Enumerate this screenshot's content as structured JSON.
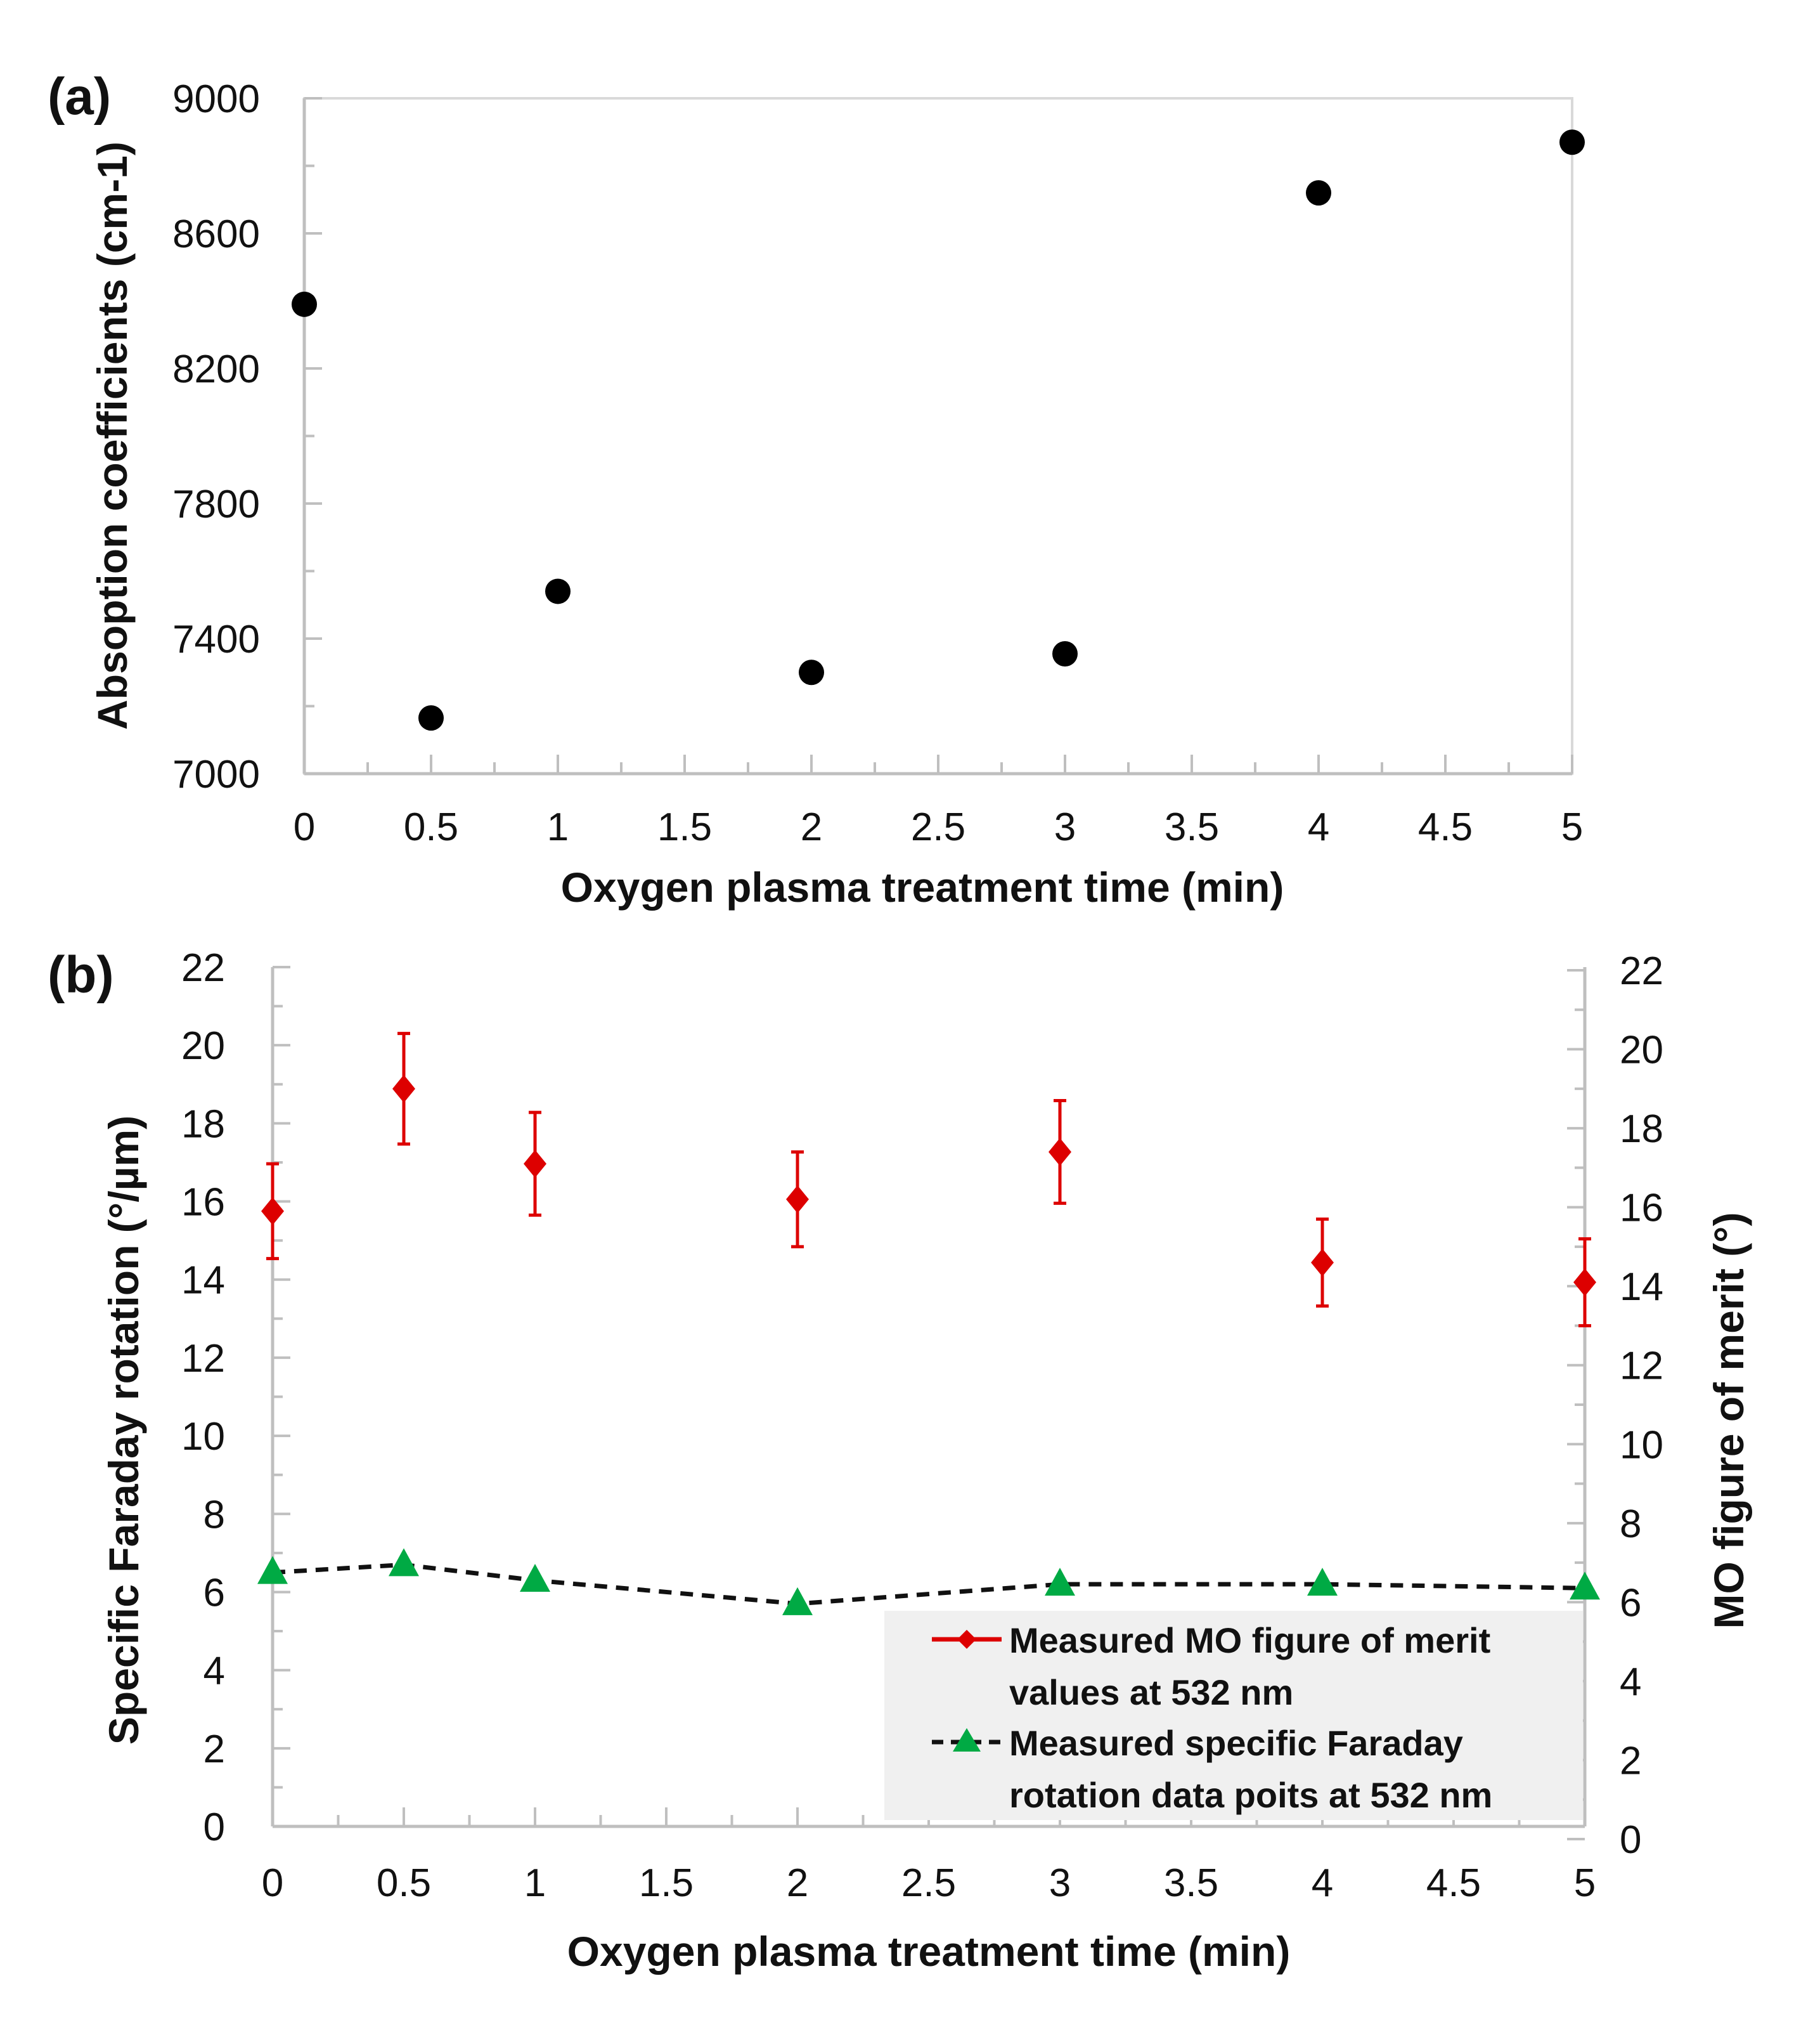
{
  "chart_data": [
    {
      "panel": "(a)",
      "type": "scatter",
      "xlabel": "Oxygen plasma treatment time (min)",
      "ylabel": "Absoption coefficients (cm-1)",
      "xlim": [
        0,
        5
      ],
      "ylim": [
        7000,
        9000
      ],
      "xticks": [
        "0",
        "0.5",
        "1",
        "1.5",
        "2",
        "2.5",
        "3",
        "3.5",
        "4",
        "4.5",
        "5"
      ],
      "yticks": [
        "7000",
        "7400",
        "7800",
        "8200",
        "8600",
        "9000"
      ],
      "grid": false,
      "series": [
        {
          "name": "Absorption coefficient",
          "color": "#000000",
          "x": [
            0,
            0.5,
            1,
            2,
            3,
            4,
            5
          ],
          "values": [
            8390,
            7165,
            7540,
            7300,
            7355,
            8720,
            8870
          ]
        }
      ]
    },
    {
      "panel": "(b)",
      "type": "scatter",
      "xlabel": "Oxygen plasma treatment time (min)",
      "ylabel": "Specific Faraday rotation (°/µm)",
      "y2label": "MO figure of merit (°)",
      "xlim": [
        0,
        5
      ],
      "ylim": [
        0,
        22
      ],
      "y2lim": [
        0,
        22
      ],
      "xticks": [
        "0",
        "0.5",
        "1",
        "1.5",
        "2",
        "2.5",
        "3",
        "3.5",
        "4",
        "4.5",
        "5"
      ],
      "yticks": [
        "0",
        "2",
        "4",
        "6",
        "8",
        "10",
        "12",
        "14",
        "16",
        "18",
        "20",
        "22"
      ],
      "y2ticks": [
        "0",
        "2",
        "4",
        "6",
        "8",
        "10",
        "12",
        "14",
        "16",
        "18",
        "20",
        "22"
      ],
      "grid": false,
      "legend_position": "bottom-right",
      "series": [
        {
          "name": "Measured MO figure of merit values at 532 nm",
          "legend_lines": [
            "Measured MO figure of merit",
            "values at 532 nm"
          ],
          "axis": "right",
          "marker": "diamond",
          "color": "#dd0000",
          "x": [
            0,
            0.5,
            1,
            2,
            3,
            4,
            5
          ],
          "values": [
            15.9,
            19.0,
            17.1,
            16.2,
            17.4,
            14.6,
            14.1
          ],
          "error": [
            1.2,
            1.4,
            1.3,
            1.2,
            1.3,
            1.1,
            1.1
          ]
        },
        {
          "name": "Measured specific Faraday rotation data poits at 532 nm",
          "legend_lines": [
            "Measured specific Faraday",
            "rotation data poits at 532 nm"
          ],
          "axis": "left",
          "marker": "triangle",
          "line": "dashed",
          "color": "#00aa44",
          "line_color": "#111111",
          "x": [
            0,
            0.5,
            1,
            2,
            3,
            4,
            5
          ],
          "values": [
            6.5,
            6.7,
            6.3,
            5.7,
            6.2,
            6.2,
            6.1
          ]
        }
      ]
    }
  ]
}
